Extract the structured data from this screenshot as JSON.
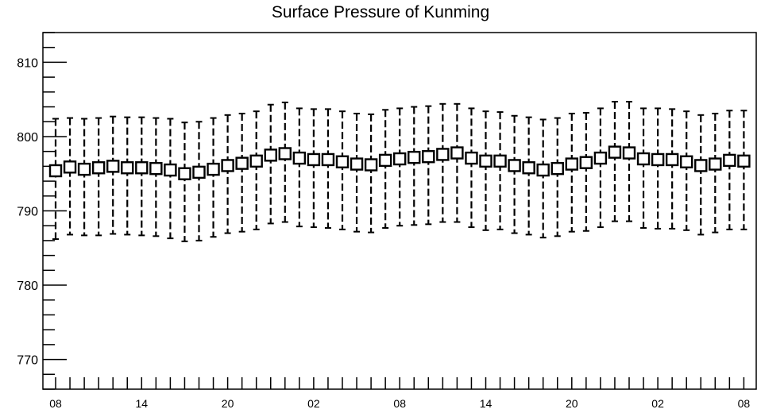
{
  "chart_data": {
    "type": "boxplot",
    "title": "Surface Pressure of Kunming",
    "xlabel": "",
    "ylabel": "",
    "ylim": [
      766,
      814
    ],
    "yticks": [
      770,
      780,
      790,
      800,
      810
    ],
    "xtick_labels": [
      "08",
      "14",
      "20",
      "02",
      "08",
      "14",
      "20",
      "02",
      "08"
    ],
    "grid": false,
    "colors": {
      "line": "#000000",
      "box_fill": "#ffffff"
    },
    "x": [
      0,
      1,
      2,
      3,
      4,
      5,
      6,
      7,
      8,
      9,
      10,
      11,
      12,
      13,
      14,
      15,
      16,
      17,
      18,
      19,
      20,
      21,
      22,
      23,
      24,
      25,
      26,
      27,
      28,
      29,
      30,
      31,
      32,
      33,
      34,
      35,
      36,
      37,
      38,
      39,
      40,
      41,
      42,
      43,
      44,
      45,
      46,
      47,
      48
    ],
    "center": [
      795.4,
      795.9,
      795.6,
      795.8,
      796.0,
      795.8,
      795.8,
      795.7,
      795.5,
      795.0,
      795.2,
      795.6,
      796.1,
      796.4,
      796.7,
      797.5,
      797.7,
      797.1,
      796.9,
      796.9,
      796.6,
      796.3,
      796.2,
      796.8,
      797.0,
      797.2,
      797.3,
      797.6,
      797.8,
      797.1,
      796.7,
      796.7,
      796.1,
      795.8,
      795.5,
      795.7,
      796.3,
      796.5,
      797.1,
      797.9,
      797.8,
      797.0,
      796.9,
      796.9,
      796.6,
      796.1,
      796.3,
      796.8,
      796.7
    ],
    "upper": [
      802.4,
      802.5,
      802.4,
      802.5,
      802.7,
      802.6,
      802.6,
      802.5,
      802.4,
      801.9,
      802.0,
      802.5,
      802.9,
      803.1,
      803.4,
      804.3,
      804.6,
      803.8,
      803.7,
      803.7,
      803.4,
      803.1,
      803.0,
      803.6,
      803.8,
      804.0,
      804.1,
      804.4,
      804.4,
      803.8,
      803.4,
      803.3,
      802.8,
      802.6,
      802.3,
      802.5,
      803.1,
      803.2,
      803.8,
      804.7,
      804.7,
      803.8,
      803.8,
      803.7,
      803.4,
      802.9,
      803.1,
      803.5,
      803.5
    ],
    "lower": [
      786.2,
      786.8,
      786.7,
      786.7,
      786.9,
      786.8,
      786.7,
      786.6,
      786.3,
      785.9,
      786.0,
      786.5,
      787.0,
      787.2,
      787.5,
      788.3,
      788.5,
      787.9,
      787.8,
      787.7,
      787.5,
      787.2,
      787.1,
      787.7,
      788.0,
      788.1,
      788.2,
      788.5,
      788.5,
      787.8,
      787.4,
      787.5,
      787.0,
      786.8,
      786.4,
      786.6,
      787.2,
      787.3,
      787.8,
      788.6,
      788.6,
      787.7,
      787.6,
      787.6,
      787.4,
      786.8,
      787.1,
      787.5,
      787.5
    ]
  }
}
